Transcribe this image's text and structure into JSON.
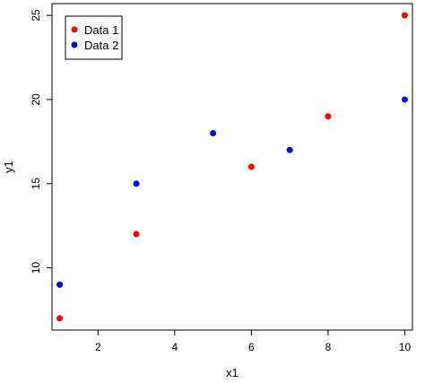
{
  "chart_data": {
    "type": "scatter",
    "title": "",
    "xlabel": "x1",
    "ylabel": "y1",
    "xlim": [
      0.8,
      10.2
    ],
    "ylim": [
      6.3,
      25.7
    ],
    "xticks": [
      2,
      4,
      6,
      8,
      10
    ],
    "yticks": [
      10,
      15,
      20,
      25
    ],
    "grid": false,
    "legend_position": "top-left",
    "series": [
      {
        "name": "Data 1",
        "color": "#ff0000",
        "x": [
          1,
          3,
          6,
          8,
          10
        ],
        "y": [
          7,
          12,
          16,
          19,
          25
        ]
      },
      {
        "name": "Data 2",
        "color": "#0000ff",
        "x": [
          1,
          3,
          5,
          7,
          10
        ],
        "y": [
          9,
          15,
          18,
          17,
          20
        ]
      }
    ]
  }
}
